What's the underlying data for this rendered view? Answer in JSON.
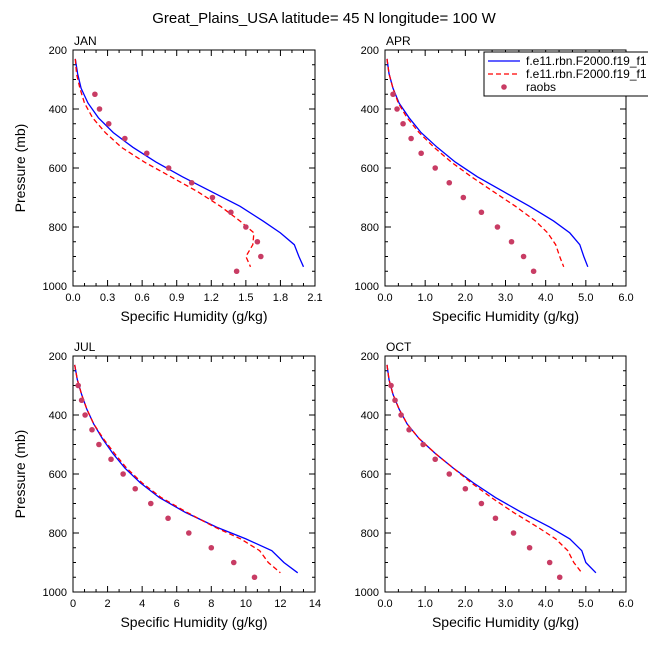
{
  "title": "Great_Plains_USA  latitude= 45 N longitude= 100 W",
  "legend": {
    "entries": [
      {
        "label": "f.e11.rbn.F2000.f19_f1",
        "color": "#0000ff",
        "style": "solid"
      },
      {
        "label": "f.e11.rbn.F2000.f19_f1",
        "color": "#ff0000",
        "style": "dashed"
      },
      {
        "label": "raobs",
        "color": "#c83c64",
        "style": "marker"
      }
    ]
  },
  "colors": {
    "model_a": "#0000ff",
    "model_b": "#ff0000",
    "obs": "#c83c64"
  },
  "chart_data": [
    {
      "type": "line",
      "panel": "JAN",
      "xlabel": "Specific Humidity (g/kg)",
      "ylabel": "Pressure (mb)",
      "xlim": [
        0,
        2.1
      ],
      "ylim": [
        1000,
        200
      ],
      "y_reversed": true,
      "xticks": [
        "0.0",
        "0.3",
        "0.6",
        "0.9",
        "1.2",
        "1.5",
        "1.8",
        "2.1"
      ],
      "yticks": [
        "200",
        "400",
        "600",
        "800",
        "1000"
      ],
      "series": [
        {
          "key": "model_a",
          "points": [
            [
              0.02,
              230
            ],
            [
              0.04,
              280
            ],
            [
              0.07,
              330
            ],
            [
              0.13,
              380
            ],
            [
              0.22,
              430
            ],
            [
              0.35,
              480
            ],
            [
              0.52,
              530
            ],
            [
              0.72,
              580
            ],
            [
              0.95,
              630
            ],
            [
              1.2,
              680
            ],
            [
              1.45,
              730
            ],
            [
              1.65,
              780
            ],
            [
              1.8,
              820
            ],
            [
              1.92,
              860
            ],
            [
              1.96,
              900
            ],
            [
              2.0,
              935
            ]
          ]
        },
        {
          "key": "model_b",
          "points": [
            [
              0.02,
              230
            ],
            [
              0.03,
              280
            ],
            [
              0.06,
              330
            ],
            [
              0.1,
              380
            ],
            [
              0.17,
              430
            ],
            [
              0.28,
              480
            ],
            [
              0.42,
              530
            ],
            [
              0.62,
              580
            ],
            [
              0.85,
              630
            ],
            [
              1.08,
              680
            ],
            [
              1.28,
              730
            ],
            [
              1.45,
              780
            ],
            [
              1.57,
              820
            ],
            [
              1.56,
              860
            ],
            [
              1.5,
              900
            ],
            [
              1.54,
              935
            ]
          ]
        },
        {
          "key": "obs",
          "points": [
            [
              0.19,
              350
            ],
            [
              0.23,
              400
            ],
            [
              0.31,
              450
            ],
            [
              0.45,
              500
            ],
            [
              0.64,
              550
            ],
            [
              0.83,
              600
            ],
            [
              1.03,
              650
            ],
            [
              1.21,
              700
            ],
            [
              1.37,
              750
            ],
            [
              1.5,
              800
            ],
            [
              1.6,
              850
            ],
            [
              1.63,
              900
            ],
            [
              1.42,
              950
            ]
          ]
        }
      ]
    },
    {
      "type": "line",
      "panel": "APR",
      "xlabel": "Specific Humidity (g/kg)",
      "ylabel": "",
      "xlim": [
        0,
        6
      ],
      "ylim": [
        1000,
        200
      ],
      "y_reversed": true,
      "xticks": [
        "0.0",
        "1.0",
        "2.0",
        "3.0",
        "4.0",
        "5.0",
        "6.0"
      ],
      "yticks": [
        "200",
        "400",
        "600",
        "800",
        "1000"
      ],
      "series": [
        {
          "key": "model_a",
          "points": [
            [
              0.05,
              230
            ],
            [
              0.1,
              280
            ],
            [
              0.2,
              330
            ],
            [
              0.35,
              380
            ],
            [
              0.6,
              430
            ],
            [
              0.9,
              480
            ],
            [
              1.3,
              530
            ],
            [
              1.75,
              580
            ],
            [
              2.3,
              630
            ],
            [
              2.95,
              680
            ],
            [
              3.6,
              730
            ],
            [
              4.2,
              780
            ],
            [
              4.6,
              820
            ],
            [
              4.85,
              860
            ],
            [
              4.95,
              900
            ],
            [
              5.05,
              935
            ]
          ]
        },
        {
          "key": "model_b",
          "points": [
            [
              0.05,
              230
            ],
            [
              0.1,
              280
            ],
            [
              0.2,
              330
            ],
            [
              0.33,
              380
            ],
            [
              0.55,
              430
            ],
            [
              0.85,
              480
            ],
            [
              1.22,
              530
            ],
            [
              1.65,
              580
            ],
            [
              2.15,
              630
            ],
            [
              2.7,
              680
            ],
            [
              3.25,
              730
            ],
            [
              3.75,
              780
            ],
            [
              4.05,
              820
            ],
            [
              4.25,
              860
            ],
            [
              4.35,
              900
            ],
            [
              4.45,
              935
            ]
          ]
        },
        {
          "key": "obs",
          "points": [
            [
              0.2,
              350
            ],
            [
              0.3,
              400
            ],
            [
              0.45,
              450
            ],
            [
              0.65,
              500
            ],
            [
              0.9,
              550
            ],
            [
              1.25,
              600
            ],
            [
              1.6,
              650
            ],
            [
              1.95,
              700
            ],
            [
              2.4,
              750
            ],
            [
              2.8,
              800
            ],
            [
              3.15,
              850
            ],
            [
              3.45,
              900
            ],
            [
              3.7,
              950
            ]
          ]
        }
      ]
    },
    {
      "type": "line",
      "panel": "JUL",
      "xlabel": "Specific Humidity (g/kg)",
      "ylabel": "Pressure (mb)",
      "xlim": [
        0,
        14
      ],
      "ylim": [
        1000,
        200
      ],
      "y_reversed": true,
      "xticks": [
        "0",
        "2",
        "4",
        "6",
        "8",
        "10",
        "12",
        "14"
      ],
      "yticks": [
        "200",
        "400",
        "600",
        "800",
        "1000"
      ],
      "series": [
        {
          "key": "model_a",
          "points": [
            [
              0.1,
              230
            ],
            [
              0.25,
              280
            ],
            [
              0.5,
              330
            ],
            [
              0.8,
              380
            ],
            [
              1.2,
              430
            ],
            [
              1.7,
              480
            ],
            [
              2.3,
              530
            ],
            [
              3.0,
              580
            ],
            [
              3.9,
              630
            ],
            [
              5.0,
              680
            ],
            [
              6.5,
              730
            ],
            [
              8.3,
              780
            ],
            [
              10,
              820
            ],
            [
              11.5,
              860
            ],
            [
              12.2,
              900
            ],
            [
              13.0,
              935
            ]
          ]
        },
        {
          "key": "model_b",
          "points": [
            [
              0.1,
              230
            ],
            [
              0.25,
              280
            ],
            [
              0.5,
              330
            ],
            [
              0.8,
              380
            ],
            [
              1.2,
              430
            ],
            [
              1.75,
              480
            ],
            [
              2.4,
              530
            ],
            [
              3.1,
              580
            ],
            [
              4.0,
              630
            ],
            [
              5.1,
              680
            ],
            [
              6.6,
              730
            ],
            [
              8.2,
              780
            ],
            [
              9.7,
              820
            ],
            [
              10.8,
              860
            ],
            [
              11.3,
              900
            ],
            [
              12.0,
              935
            ]
          ]
        },
        {
          "key": "obs",
          "points": [
            [
              0.3,
              300
            ],
            [
              0.5,
              350
            ],
            [
              0.7,
              400
            ],
            [
              1.1,
              450
            ],
            [
              1.5,
              500
            ],
            [
              2.2,
              550
            ],
            [
              2.9,
              600
            ],
            [
              3.6,
              650
            ],
            [
              4.5,
              700
            ],
            [
              5.5,
              750
            ],
            [
              6.7,
              800
            ],
            [
              8.0,
              850
            ],
            [
              9.3,
              900
            ],
            [
              10.5,
              950
            ]
          ]
        }
      ]
    },
    {
      "type": "line",
      "panel": "OCT",
      "xlabel": "Specific Humidity (g/kg)",
      "ylabel": "",
      "xlim": [
        0,
        6
      ],
      "ylim": [
        1000,
        200
      ],
      "y_reversed": true,
      "xticks": [
        "0.0",
        "1.0",
        "2.0",
        "3.0",
        "4.0",
        "5.0",
        "6.0"
      ],
      "yticks": [
        "200",
        "400",
        "600",
        "800",
        "1000"
      ],
      "series": [
        {
          "key": "model_a",
          "points": [
            [
              0.05,
              230
            ],
            [
              0.1,
              280
            ],
            [
              0.2,
              330
            ],
            [
              0.35,
              380
            ],
            [
              0.55,
              430
            ],
            [
              0.85,
              480
            ],
            [
              1.25,
              530
            ],
            [
              1.7,
              580
            ],
            [
              2.2,
              630
            ],
            [
              2.75,
              680
            ],
            [
              3.4,
              730
            ],
            [
              4.1,
              780
            ],
            [
              4.6,
              820
            ],
            [
              4.9,
              860
            ],
            [
              5.0,
              900
            ],
            [
              5.25,
              935
            ]
          ]
        },
        {
          "key": "model_b",
          "points": [
            [
              0.05,
              230
            ],
            [
              0.1,
              280
            ],
            [
              0.2,
              330
            ],
            [
              0.35,
              380
            ],
            [
              0.55,
              430
            ],
            [
              0.85,
              480
            ],
            [
              1.25,
              530
            ],
            [
              1.7,
              580
            ],
            [
              2.15,
              630
            ],
            [
              2.65,
              680
            ],
            [
              3.2,
              730
            ],
            [
              3.8,
              780
            ],
            [
              4.25,
              820
            ],
            [
              4.55,
              860
            ],
            [
              4.7,
              900
            ],
            [
              4.9,
              935
            ]
          ]
        },
        {
          "key": "obs",
          "points": [
            [
              0.15,
              300
            ],
            [
              0.25,
              350
            ],
            [
              0.4,
              400
            ],
            [
              0.6,
              450
            ],
            [
              0.95,
              500
            ],
            [
              1.25,
              550
            ],
            [
              1.6,
              600
            ],
            [
              2.0,
              650
            ],
            [
              2.4,
              700
            ],
            [
              2.75,
              750
            ],
            [
              3.2,
              800
            ],
            [
              3.6,
              850
            ],
            [
              4.1,
              900
            ],
            [
              4.35,
              950
            ]
          ]
        }
      ]
    }
  ]
}
